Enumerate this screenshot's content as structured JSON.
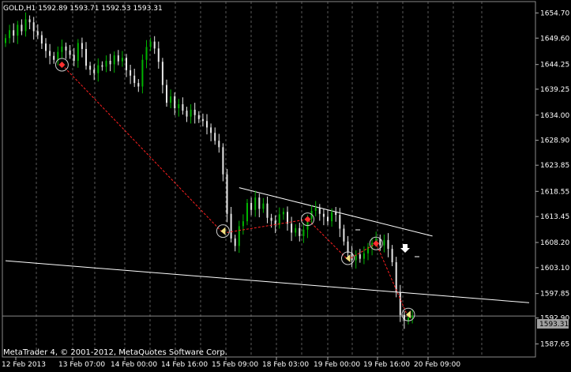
{
  "window": {
    "symbol_header": "GOLD,H1  1592.89 1593.71 1592.53 1593.31",
    "copyright": "MetaTrader 4, © 2001-2012, MetaQuotes Software Corp.",
    "current_price_label": "1593.31"
  },
  "colors": {
    "background": "#000000",
    "bull_candle": "#00b400",
    "bear_candle": "#e8e8e8",
    "zigzag": "#ff2020",
    "trendline": "#ffffff",
    "grid": "#5a5a5a",
    "price_tag_bg": "#a0a0a0",
    "price_tag_text": "#000000"
  },
  "chart_data": {
    "type": "candlestick",
    "title": "GOLD,H1",
    "ylim": [
      1585.0,
      1657.0
    ],
    "y_ticks": [
      "1654.70",
      "1649.60",
      "1644.25",
      "1639.25",
      "1634.00",
      "1628.90",
      "1623.85",
      "1618.55",
      "1613.45",
      "1608.20",
      "1603.10",
      "1597.85",
      "1592.90",
      "1587.65"
    ],
    "x_ticks": [
      "12 Feb 2013",
      "13 Feb 07:00",
      "14 Feb 00:00",
      "14 Feb 16:00",
      "15 Feb 09:00",
      "18 Feb 03:00",
      "19 Feb 00:00",
      "19 Feb 16:00",
      "20 Feb 09:00"
    ],
    "close_series": [
      1649.6,
      1651.2,
      1650.1,
      1652.3,
      1651.0,
      1653.4,
      1652.8,
      1651.0,
      1650.2,
      1648.5,
      1647.0,
      1646.0,
      1645.2,
      1646.8,
      1647.9,
      1647.1,
      1646.2,
      1645.0,
      1648.6,
      1647.4,
      1644.0,
      1643.2,
      1642.5,
      1644.1,
      1643.8,
      1645.0,
      1644.3,
      1646.1,
      1644.9,
      1645.6,
      1643.1,
      1642.0,
      1640.5,
      1639.8,
      1645.2,
      1647.8,
      1648.9,
      1647.5,
      1644.8,
      1640.1,
      1636.5,
      1637.8,
      1635.4,
      1636.2,
      1634.9,
      1633.7,
      1635.1,
      1634.0,
      1633.2,
      1632.8,
      1631.5,
      1630.4,
      1628.8,
      1627.5,
      1622.0,
      1614.0,
      1609.0,
      1607.5,
      1611.5,
      1612.5,
      1616.2,
      1614.8,
      1617.3,
      1615.0,
      1616.1,
      1613.2,
      1612.6,
      1611.8,
      1613.9,
      1614.4,
      1612.0,
      1610.2,
      1611.1,
      1609.5,
      1610.8,
      1613.0,
      1614.6,
      1615.2,
      1614.0,
      1613.4,
      1612.5,
      1614.3,
      1613.8,
      1611.0,
      1608.4,
      1606.1,
      1604.6,
      1605.8,
      1604.9,
      1606.0,
      1607.3,
      1608.1,
      1609.0,
      1607.6,
      1608.7,
      1606.9,
      1604.2,
      1598.2,
      1593.5,
      1592.4,
      1592.9,
      1593.31
    ],
    "zigzag_points": [
      {
        "bar": 14,
        "price": 1644.2
      },
      {
        "bar": 54,
        "price": 1610.1
      },
      {
        "bar": 75,
        "price": 1612.9
      },
      {
        "bar": 85,
        "price": 1604.7
      },
      {
        "bar": 92,
        "price": 1608.0
      },
      {
        "bar": 100,
        "price": 1593.0
      }
    ],
    "markers": [
      {
        "bar": 14,
        "price": 1644.2,
        "kind": "sell"
      },
      {
        "bar": 54,
        "price": 1610.5,
        "kind": "close"
      },
      {
        "bar": 75,
        "price": 1612.9,
        "kind": "sell"
      },
      {
        "bar": 85,
        "price": 1605.0,
        "kind": "close"
      },
      {
        "bar": 92,
        "price": 1608.0,
        "kind": "sell"
      },
      {
        "bar": 100,
        "price": 1593.6,
        "kind": "close"
      }
    ],
    "trendlines": [
      {
        "from_bar": 58,
        "from_price": 1619.3,
        "to_bar": 106,
        "to_price": 1609.5
      },
      {
        "from_bar": 0,
        "from_price": 1604.5,
        "to_bar": 130,
        "to_price": 1596.0
      }
    ],
    "current_price": 1593.31,
    "grid": true
  }
}
